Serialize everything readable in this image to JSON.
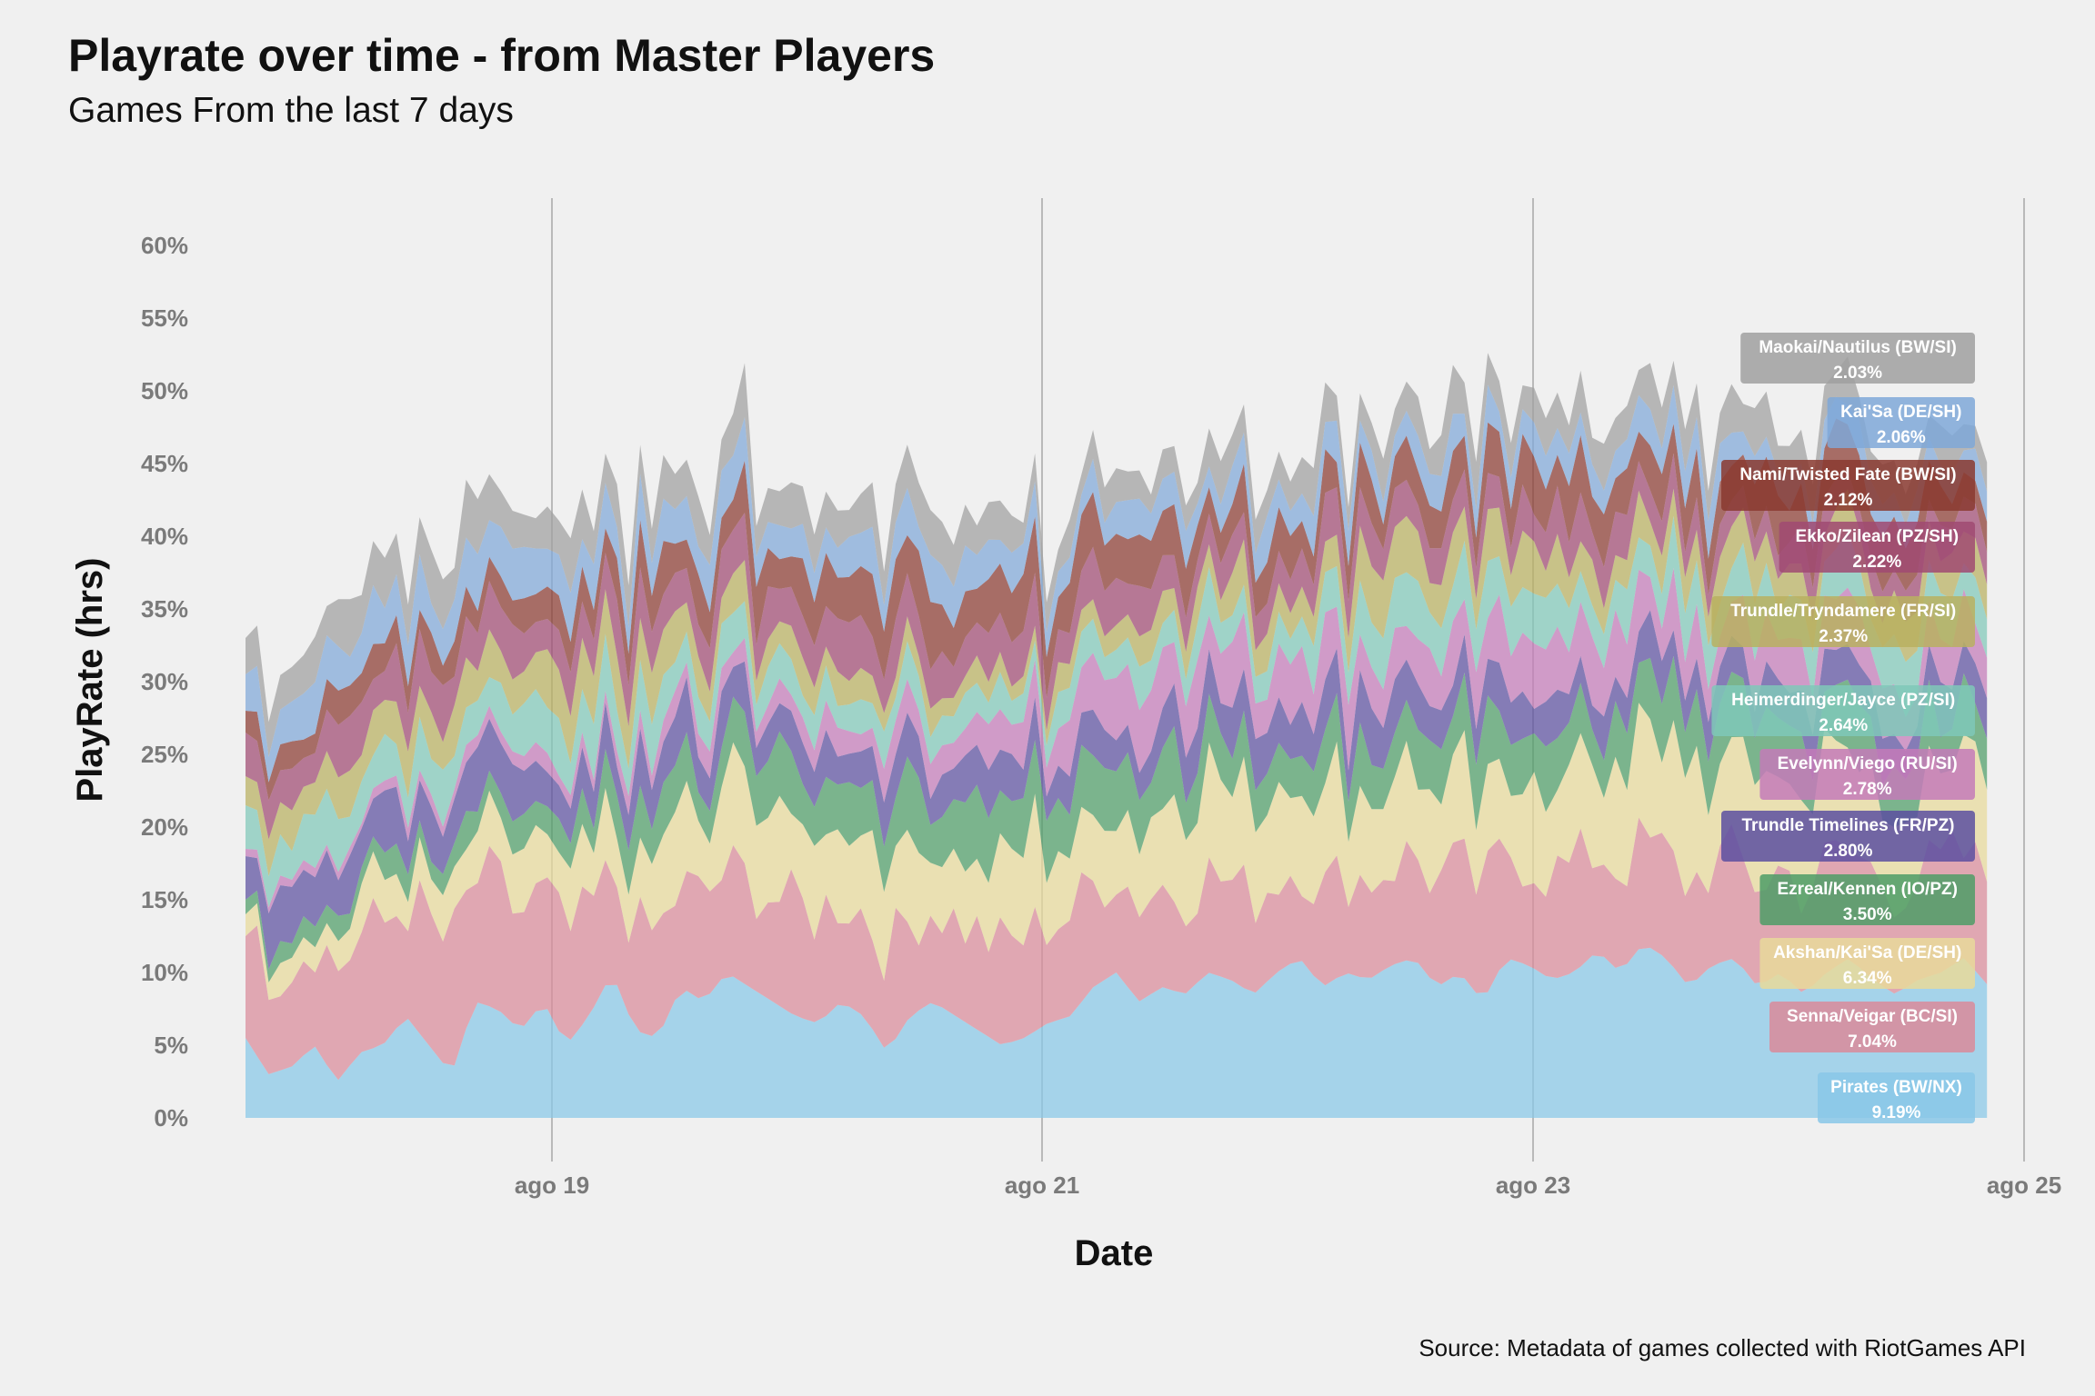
{
  "chart_data": {
    "type": "area",
    "stacked": true,
    "title": "Playrate over time - from Master Players",
    "subtitle": "Games From the last 7 days",
    "caption": "Source: Metadata of games collected with RiotGames API",
    "xlabel": "Date",
    "ylabel": "PlayRate (hrs)",
    "x_ticks": [
      "ago 19",
      "ago 21",
      "ago 23",
      "ago 25"
    ],
    "y_ticks": [
      "0%",
      "5%",
      "10%",
      "15%",
      "20%",
      "25%",
      "30%",
      "35%",
      "40%",
      "45%",
      "50%",
      "55%",
      "60%"
    ],
    "ylim": [
      0,
      60
    ],
    "xlim": [
      "ago 17 18:00",
      "ago 25 00:00"
    ],
    "grid": "vertical major lines",
    "legend": "end labels at right",
    "series": [
      {
        "name": "Pirates (BW/NX)",
        "end_label": "9.19%",
        "color": "#88c7e8",
        "points": [
          [
            0,
            5.5
          ],
          [
            0.1,
            3
          ],
          [
            0.2,
            3.5
          ],
          [
            0.3,
            5
          ],
          [
            0.4,
            2.5
          ],
          [
            0.5,
            4.5
          ],
          [
            0.6,
            5
          ],
          [
            0.7,
            7
          ],
          [
            0.8,
            5
          ],
          [
            0.9,
            3
          ],
          [
            1.0,
            8
          ],
          [
            1.1,
            7.5
          ],
          [
            1.2,
            6
          ],
          [
            1.3,
            8
          ],
          [
            1.4,
            5
          ],
          [
            1.5,
            7
          ],
          [
            1.6,
            10
          ],
          [
            1.7,
            6
          ],
          [
            1.8,
            5.5
          ],
          [
            1.9,
            9
          ],
          [
            2.0,
            8
          ],
          [
            2.1,
            10
          ],
          [
            2.2,
            9
          ],
          [
            2.3,
            8
          ],
          [
            2.4,
            7
          ],
          [
            2.5,
            6.5
          ],
          [
            2.6,
            8
          ],
          [
            2.7,
            7
          ],
          [
            2.8,
            4.5
          ],
          [
            2.9,
            7
          ],
          [
            3.0,
            8
          ],
          [
            3.1,
            7
          ],
          [
            3.2,
            6
          ],
          [
            3.3,
            5
          ],
          [
            3.4,
            5.5
          ],
          [
            3.5,
            6.5
          ],
          [
            3.6,
            7
          ],
          [
            3.7,
            9
          ],
          [
            3.8,
            10
          ],
          [
            3.9,
            8
          ],
          [
            4.0,
            9
          ],
          [
            4.1,
            8.5
          ],
          [
            4.2,
            10
          ],
          [
            4.3,
            9.5
          ],
          [
            4.4,
            8.5
          ],
          [
            4.5,
            10
          ],
          [
            4.6,
            11
          ],
          [
            4.7,
            9
          ],
          [
            4.8,
            10
          ],
          [
            4.9,
            9.5
          ],
          [
            5.0,
            10.5
          ],
          [
            5.1,
            11
          ],
          [
            5.2,
            9
          ],
          [
            5.3,
            10
          ],
          [
            5.4,
            8
          ],
          [
            5.5,
            11
          ],
          [
            5.6,
            10.5
          ],
          [
            5.7,
            9.5
          ],
          [
            5.8,
            10
          ],
          [
            5.9,
            11.5
          ],
          [
            6.0,
            10
          ],
          [
            6.1,
            12
          ],
          [
            6.2,
            11
          ],
          [
            6.3,
            9
          ],
          [
            6.4,
            10.5
          ],
          [
            6.5,
            11
          ],
          [
            6.6,
            9
          ],
          [
            6.7,
            10
          ],
          [
            6.8,
            8.5
          ],
          [
            6.9,
            10
          ],
          [
            7.0,
            11
          ],
          [
            7.1,
            9.5
          ],
          [
            7.2,
            8.5
          ],
          [
            7.3,
            9.5
          ],
          [
            7.4,
            10
          ],
          [
            7.5,
            11
          ],
          [
            7.6,
            9.19
          ]
        ]
      },
      {
        "name": "Senna/Veigar (BC/SI)",
        "end_label": "7.04%",
        "color": "#d98a9a",
        "points": [
          [
            0,
            7
          ],
          [
            0.5,
            8
          ],
          [
            1.0,
            8.5
          ],
          [
            1.5,
            7
          ],
          [
            2.0,
            7
          ],
          [
            2.5,
            7.5
          ],
          [
            3.0,
            6.5
          ],
          [
            3.5,
            7
          ],
          [
            4.0,
            7
          ],
          [
            4.5,
            6.5
          ],
          [
            5.0,
            7
          ],
          [
            5.5,
            7.5
          ],
          [
            6.0,
            7
          ],
          [
            6.5,
            7
          ],
          [
            7.0,
            7.5
          ],
          [
            7.6,
            7.04
          ]
        ]
      },
      {
        "name": "Akshan/Kai'Sa (DE/SH)",
        "end_label": "6.34%",
        "color": "#e8d99a",
        "points": [
          [
            0,
            1.5
          ],
          [
            0.5,
            2.5
          ],
          [
            1.0,
            3.5
          ],
          [
            1.5,
            4.5
          ],
          [
            2.0,
            5
          ],
          [
            2.5,
            6
          ],
          [
            3.0,
            5.5
          ],
          [
            3.5,
            6
          ],
          [
            4.0,
            6
          ],
          [
            4.5,
            6.5
          ],
          [
            5.0,
            6
          ],
          [
            5.5,
            6.5
          ],
          [
            6.0,
            7
          ],
          [
            6.5,
            6.5
          ],
          [
            7.0,
            6.5
          ],
          [
            7.6,
            6.34
          ]
        ]
      },
      {
        "name": "Ezreal/Kennen (IO/PZ)",
        "end_label": "3.50%",
        "color": "#4e9c66",
        "points": [
          [
            0,
            1
          ],
          [
            0.5,
            1.5
          ],
          [
            1.0,
            2
          ],
          [
            1.5,
            2.5
          ],
          [
            2.0,
            3
          ],
          [
            2.5,
            3.5
          ],
          [
            3.0,
            4
          ],
          [
            3.5,
            3.5
          ],
          [
            4.0,
            3.5
          ],
          [
            4.5,
            3.5
          ],
          [
            5.0,
            4
          ],
          [
            5.5,
            3.5
          ],
          [
            6.0,
            3.5
          ],
          [
            6.5,
            3.5
          ],
          [
            7.0,
            3.5
          ],
          [
            7.6,
            3.5
          ]
        ]
      },
      {
        "name": "Trundle Timelines (FR/PZ)",
        "end_label": "2.80%",
        "color": "#5c4fa0",
        "points": [
          [
            0,
            3
          ],
          [
            0.5,
            3.5
          ],
          [
            1.0,
            3.5
          ],
          [
            1.5,
            3
          ],
          [
            2.0,
            3
          ],
          [
            2.5,
            2.5
          ],
          [
            3.0,
            2.5
          ],
          [
            3.5,
            2.5
          ],
          [
            4.0,
            2.5
          ],
          [
            4.5,
            3
          ],
          [
            5.0,
            3
          ],
          [
            5.5,
            2.5
          ],
          [
            6.0,
            2.5
          ],
          [
            6.5,
            2.5
          ],
          [
            7.0,
            3
          ],
          [
            7.6,
            2.8
          ]
        ]
      },
      {
        "name": "Evelynn/Viego (RU/SI)",
        "end_label": "2.78%",
        "color": "#c47ab8",
        "points": [
          [
            0,
            0.5
          ],
          [
            0.5,
            0.5
          ],
          [
            1.0,
            1
          ],
          [
            1.5,
            1
          ],
          [
            2.0,
            1.5
          ],
          [
            2.5,
            1.5
          ],
          [
            3.0,
            2
          ],
          [
            3.5,
            3
          ],
          [
            4.0,
            3.5
          ],
          [
            4.5,
            3.5
          ],
          [
            5.0,
            3.5
          ],
          [
            5.5,
            3.5
          ],
          [
            6.0,
            3.5
          ],
          [
            6.5,
            3
          ],
          [
            7.0,
            3
          ],
          [
            7.6,
            2.78
          ]
        ]
      },
      {
        "name": "Heimerdinger/Jayce (PZ/SI)",
        "end_label": "2.64%",
        "color": "#7fc8b8",
        "points": [
          [
            0,
            3
          ],
          [
            0.5,
            3
          ],
          [
            1.0,
            3
          ],
          [
            1.5,
            3
          ],
          [
            2.0,
            2.5
          ],
          [
            2.5,
            2
          ],
          [
            3.0,
            2
          ],
          [
            3.5,
            2
          ],
          [
            4.0,
            2.5
          ],
          [
            4.5,
            2.5
          ],
          [
            5.0,
            3
          ],
          [
            5.5,
            3
          ],
          [
            6.0,
            3
          ],
          [
            6.5,
            3
          ],
          [
            7.0,
            3
          ],
          [
            7.6,
            2.64
          ]
        ]
      },
      {
        "name": "Trundle/Tryndamere (FR/SI)",
        "end_label": "2.37%",
        "color": "#b8b060",
        "points": [
          [
            0,
            2
          ],
          [
            0.5,
            2.5
          ],
          [
            1.0,
            3
          ],
          [
            1.5,
            3
          ],
          [
            2.0,
            2.5
          ],
          [
            2.5,
            2
          ],
          [
            3.0,
            1.5
          ],
          [
            3.5,
            1.5
          ],
          [
            4.0,
            2
          ],
          [
            4.5,
            2.5
          ],
          [
            5.0,
            3
          ],
          [
            5.5,
            3
          ],
          [
            6.0,
            2.5
          ],
          [
            6.5,
            2.5
          ],
          [
            7.0,
            2.5
          ],
          [
            7.6,
            2.37
          ]
        ]
      },
      {
        "name": "Ekko/Zilean (PZ/SH)",
        "end_label": "2.22%",
        "color": "#a04a72",
        "points": [
          [
            0,
            3
          ],
          [
            0.5,
            3
          ],
          [
            1.0,
            3
          ],
          [
            1.5,
            3
          ],
          [
            2.0,
            3
          ],
          [
            2.5,
            3
          ],
          [
            3.0,
            3
          ],
          [
            3.5,
            3
          ],
          [
            4.0,
            2.5
          ],
          [
            4.5,
            2.5
          ],
          [
            5.0,
            2.5
          ],
          [
            5.5,
            2.5
          ],
          [
            6.0,
            2.5
          ],
          [
            6.5,
            2
          ],
          [
            7.0,
            2
          ],
          [
            7.6,
            2.22
          ]
        ]
      },
      {
        "name": "Nami/Twisted Fate (BW/SI)",
        "end_label": "2.12%",
        "color": "#8a3a30",
        "points": [
          [
            0,
            1.5
          ],
          [
            0.5,
            2
          ],
          [
            1.0,
            2
          ],
          [
            1.5,
            2.5
          ],
          [
            2.0,
            3
          ],
          [
            2.5,
            3
          ],
          [
            3.0,
            3.5
          ],
          [
            3.5,
            3
          ],
          [
            4.0,
            3
          ],
          [
            4.5,
            2.5
          ],
          [
            5.0,
            2.5
          ],
          [
            5.5,
            3
          ],
          [
            6.0,
            3
          ],
          [
            6.5,
            3
          ],
          [
            7.0,
            3.5
          ],
          [
            7.6,
            2.12
          ]
        ]
      },
      {
        "name": "Kai'Sa (DE/SH)",
        "end_label": "2.06%",
        "color": "#7fa8d8",
        "points": [
          [
            0,
            2.5
          ],
          [
            0.5,
            3
          ],
          [
            1.0,
            3
          ],
          [
            1.5,
            2.5
          ],
          [
            2.0,
            2.5
          ],
          [
            2.5,
            2.5
          ],
          [
            3.0,
            2.5
          ],
          [
            3.5,
            2
          ],
          [
            4.0,
            2
          ],
          [
            4.5,
            2.5
          ],
          [
            5.0,
            2
          ],
          [
            5.5,
            2
          ],
          [
            6.0,
            2
          ],
          [
            6.5,
            2
          ],
          [
            7.0,
            2
          ],
          [
            7.6,
            2.06
          ]
        ]
      },
      {
        "name": "Maokai/Nautilus (BW/SI)",
        "end_label": "2.03%",
        "color": "#a0a0a0",
        "points": [
          [
            0,
            2.5
          ],
          [
            0.5,
            3
          ],
          [
            1.0,
            3
          ],
          [
            1.5,
            3
          ],
          [
            2.0,
            3
          ],
          [
            2.5,
            2.5
          ],
          [
            3.0,
            2.5
          ],
          [
            3.5,
            2
          ],
          [
            4.0,
            2
          ],
          [
            4.5,
            2.5
          ],
          [
            5.0,
            2.5
          ],
          [
            5.5,
            2.5
          ],
          [
            6.0,
            2.5
          ],
          [
            6.5,
            2.5
          ],
          [
            7.0,
            2.5
          ],
          [
            7.6,
            2.03
          ]
        ]
      }
    ]
  }
}
